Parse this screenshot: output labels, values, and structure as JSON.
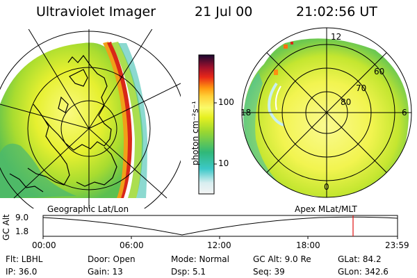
{
  "header": {
    "title": "Ultraviolet Imager",
    "date": "21 Jul 00",
    "time": "21:02:56 UT"
  },
  "colorbar": {
    "label": "photon cm⁻²s⁻¹",
    "ticks": [
      "100",
      "10"
    ]
  },
  "left_panel": {
    "caption": "Geographic Lat/Lon"
  },
  "right_panel": {
    "caption": "Apex MLat/MLT",
    "mlt_labels": [
      "12",
      "18",
      "6",
      "0"
    ],
    "lat_labels": [
      "60",
      "70",
      "80"
    ]
  },
  "altitude_plot": {
    "ylabel": "GC Alt",
    "yticks": [
      "9.0",
      "1.8"
    ],
    "xticks": [
      "00:00",
      "06:00",
      "12:00",
      "18:00",
      "23:59"
    ]
  },
  "footer": {
    "row1": {
      "flt": "Flt: LBHL",
      "door": "Door: Open",
      "mode": "Mode: Normal",
      "gcalt": "GC Alt: 9.0 Re",
      "glat": "GLat:  84.2"
    },
    "row2": {
      "ip": "IP: 36.0",
      "gain": "Gain: 13",
      "dsp": "Dsp:    5.1",
      "seq": "Seq: 39",
      "glon": "GLon: 342.6"
    }
  }
}
